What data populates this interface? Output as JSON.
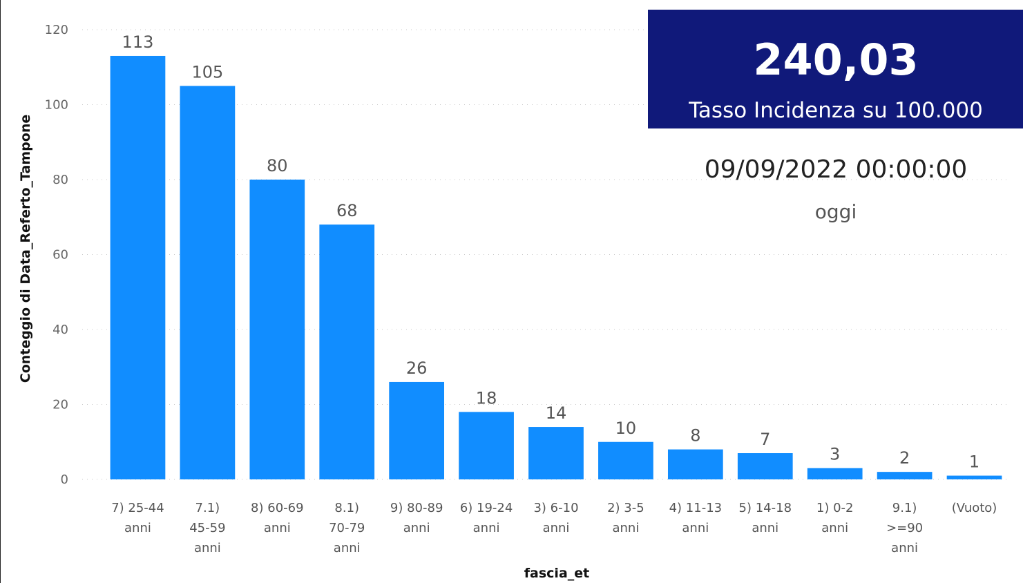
{
  "chart_data": {
    "type": "bar",
    "categories": [
      "7) 25-44 anni",
      "7.1) 45-59 anni",
      "8) 60-69 anni",
      "8.1) 70-79 anni",
      "9) 80-89 anni",
      "6) 19-24 anni",
      "3) 6-10 anni",
      "2) 3-5 anni",
      "4) 11-13 anni",
      "5) 14-18 anni",
      "1) 0-2 anni",
      "9.1) >=90 anni",
      "(Vuoto)"
    ],
    "category_label_lines": [
      [
        "7) 25-44",
        "anni"
      ],
      [
        "7.1)",
        "45-59",
        "anni"
      ],
      [
        "8) 60-69",
        "anni"
      ],
      [
        "8.1)",
        "70-79",
        "anni"
      ],
      [
        "9) 80-89",
        "anni"
      ],
      [
        "6) 19-24",
        "anni"
      ],
      [
        "3) 6-10",
        "anni"
      ],
      [
        "2) 3-5",
        "anni"
      ],
      [
        "4) 11-13",
        "anni"
      ],
      [
        "5) 14-18",
        "anni"
      ],
      [
        "1) 0-2",
        "anni"
      ],
      [
        "9.1)",
        ">=90",
        "anni"
      ],
      [
        "(Vuoto)"
      ]
    ],
    "values": [
      113,
      105,
      80,
      68,
      26,
      18,
      14,
      10,
      8,
      7,
      3,
      2,
      1
    ],
    "xlabel": "fascia_et",
    "ylabel": "Conteggio di Data_Referto_Tampone",
    "ylim": [
      0,
      120
    ],
    "yticks": [
      0,
      20,
      40,
      60,
      80,
      100,
      120
    ],
    "grid": true,
    "bar_color": "#118dff"
  },
  "kpi": {
    "value": "240,03",
    "label": "Tasso Incidenza su 100.000",
    "background": "#10197a"
  },
  "date_card": {
    "value": "09/09/2022 00:00:00",
    "label": "oggi"
  }
}
